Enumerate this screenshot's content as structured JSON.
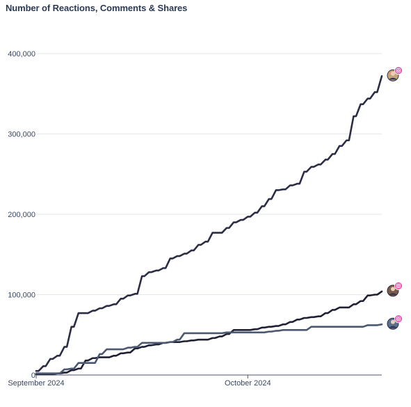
{
  "chart_data": {
    "type": "line",
    "title": "Number of Reactions, Comments & Shares",
    "xlabel": "",
    "ylabel": "",
    "ylim": [
      0,
      400000
    ],
    "yticks": [
      0,
      100000,
      200000,
      300000,
      400000
    ],
    "ytick_labels": [
      "0",
      "100,000",
      "200,000",
      "300,000",
      "400,000"
    ],
    "xticks": [
      {
        "day": 0,
        "label": "September 2024"
      },
      {
        "day": 30,
        "label": "October 2024"
      }
    ],
    "xlim_days": [
      0,
      49
    ],
    "grid": true,
    "series": [
      {
        "color": "#2b2d45",
        "end_marker": {
          "icon": "avatar-icon",
          "badge": "instagram-icon"
        },
        "x": [
          0,
          1,
          2,
          3,
          4,
          5,
          6,
          7,
          8,
          9,
          10,
          11,
          12,
          13,
          14,
          15,
          16,
          17,
          18,
          19,
          20,
          21,
          22,
          23,
          24,
          25,
          26,
          27,
          28,
          29,
          30,
          31,
          32,
          33,
          34,
          35,
          36,
          37,
          38,
          39,
          40,
          41,
          42,
          43,
          44,
          45,
          46,
          47,
          48,
          49
        ],
        "values": [
          5000,
          11000,
          20000,
          24000,
          35000,
          60000,
          77000,
          77000,
          80000,
          83000,
          86000,
          88000,
          95000,
          99000,
          101000,
          123000,
          128000,
          130000,
          133000,
          145000,
          148000,
          151000,
          155000,
          162000,
          166000,
          177000,
          177000,
          183000,
          190000,
          193000,
          197000,
          202000,
          210000,
          219000,
          230000,
          231000,
          236000,
          238000,
          253000,
          259000,
          262000,
          268000,
          275000,
          285000,
          292000,
          322000,
          337000,
          344000,
          352000,
          372000
        ]
      },
      {
        "color": "#1f2033",
        "end_marker": {
          "icon": "avatar-icon",
          "badge": "instagram-icon"
        },
        "x": [
          0,
          1,
          2,
          3,
          4,
          5,
          6,
          7,
          8,
          9,
          10,
          11,
          12,
          13,
          14,
          15,
          16,
          17,
          18,
          19,
          20,
          21,
          22,
          23,
          24,
          25,
          26,
          27,
          28,
          29,
          30,
          31,
          32,
          33,
          34,
          35,
          36,
          37,
          38,
          39,
          40,
          41,
          42,
          43,
          44,
          45,
          46,
          47,
          48,
          49
        ],
        "values": [
          1000,
          1000,
          1000,
          2000,
          3000,
          6000,
          8000,
          18000,
          21000,
          22000,
          22000,
          24000,
          27000,
          28000,
          33000,
          35000,
          37000,
          38000,
          40000,
          41000,
          41000,
          42000,
          43000,
          44000,
          44000,
          46000,
          48000,
          51000,
          56000,
          56000,
          56000,
          57000,
          59000,
          60000,
          61000,
          63000,
          66000,
          69000,
          71000,
          72000,
          73000,
          77000,
          81000,
          84000,
          84000,
          88000,
          92000,
          99000,
          100000,
          104000
        ]
      },
      {
        "color": "#4c5870",
        "end_marker": {
          "icon": "avatar-icon",
          "badge": "instagram-icon"
        },
        "x": [
          0,
          1,
          2,
          3,
          4,
          5,
          6,
          7,
          8,
          9,
          10,
          11,
          12,
          13,
          14,
          15,
          16,
          17,
          18,
          19,
          20,
          21,
          22,
          23,
          24,
          25,
          26,
          27,
          28,
          29,
          30,
          31,
          32,
          33,
          34,
          35,
          36,
          37,
          38,
          39,
          40,
          41,
          42,
          43,
          44,
          45,
          46,
          47,
          48,
          49
        ],
        "values": [
          2000,
          2000,
          2000,
          2000,
          7000,
          8000,
          15000,
          15000,
          15000,
          26000,
          32000,
          32000,
          32000,
          34000,
          35000,
          40000,
          40000,
          40000,
          40000,
          41000,
          44000,
          52000,
          52000,
          52000,
          52000,
          52000,
          52000,
          53000,
          53000,
          53000,
          53000,
          53000,
          53000,
          54000,
          55000,
          56000,
          56000,
          56000,
          56000,
          60000,
          60000,
          60000,
          60000,
          60000,
          60000,
          60000,
          60000,
          62000,
          62000,
          63000
        ]
      }
    ]
  }
}
